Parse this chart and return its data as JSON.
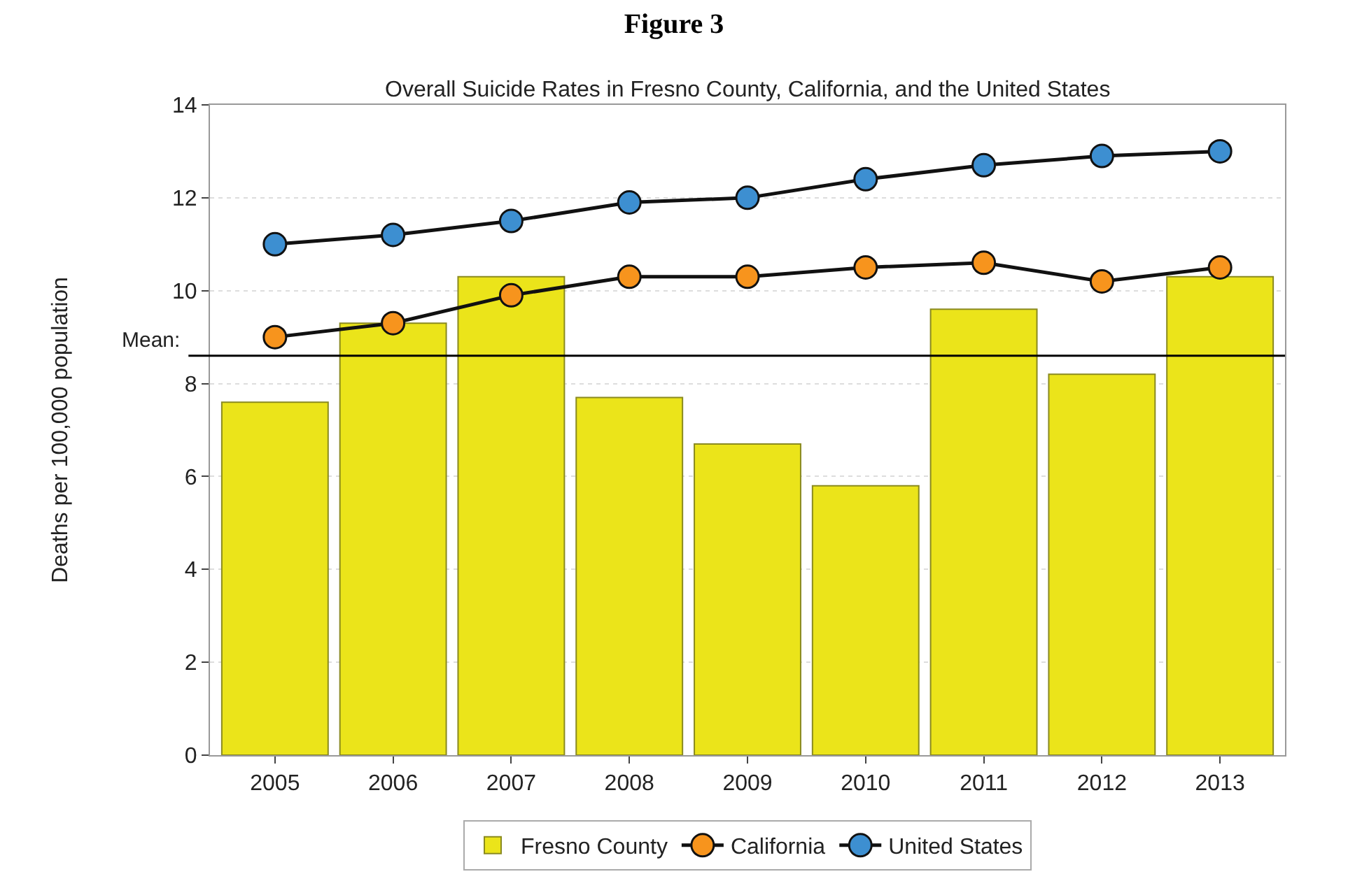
{
  "chart_data": {
    "type": "bar",
    "title": "Figure 3",
    "subtitle": "Overall Suicide Rates in Fresno County, California, and the United States",
    "ylabel": "Deaths per 100,000 population",
    "categories": [
      "2005",
      "2006",
      "2007",
      "2008",
      "2009",
      "2010",
      "2011",
      "2012",
      "2013"
    ],
    "series": [
      {
        "name": "Fresno County",
        "color": "#ebe41a",
        "values": [
          7.6,
          9.3,
          10.3,
          7.7,
          6.7,
          5.8,
          9.6,
          8.2,
          10.3
        ]
      },
      {
        "name": "California",
        "type": "line",
        "color": "#f7941d",
        "values": [
          9.0,
          9.3,
          9.9,
          10.3,
          10.3,
          10.5,
          10.6,
          10.2,
          10.5
        ]
      },
      {
        "name": "United States",
        "type": "line",
        "color": "#3d8fd1",
        "values": [
          11.0,
          11.2,
          11.5,
          11.9,
          12.0,
          12.4,
          12.7,
          12.9,
          13.0
        ]
      }
    ],
    "ylim": [
      0,
      14
    ],
    "yticks": [
      0,
      2,
      4,
      6,
      8,
      10,
      12,
      14
    ],
    "ref_lines": [
      {
        "axis": "y",
        "value": 8.6,
        "label": "Mean:",
        "color": "#000000"
      }
    ],
    "grid": "y",
    "legend": "bottom",
    "marker": "circle",
    "line_style": "solid"
  }
}
